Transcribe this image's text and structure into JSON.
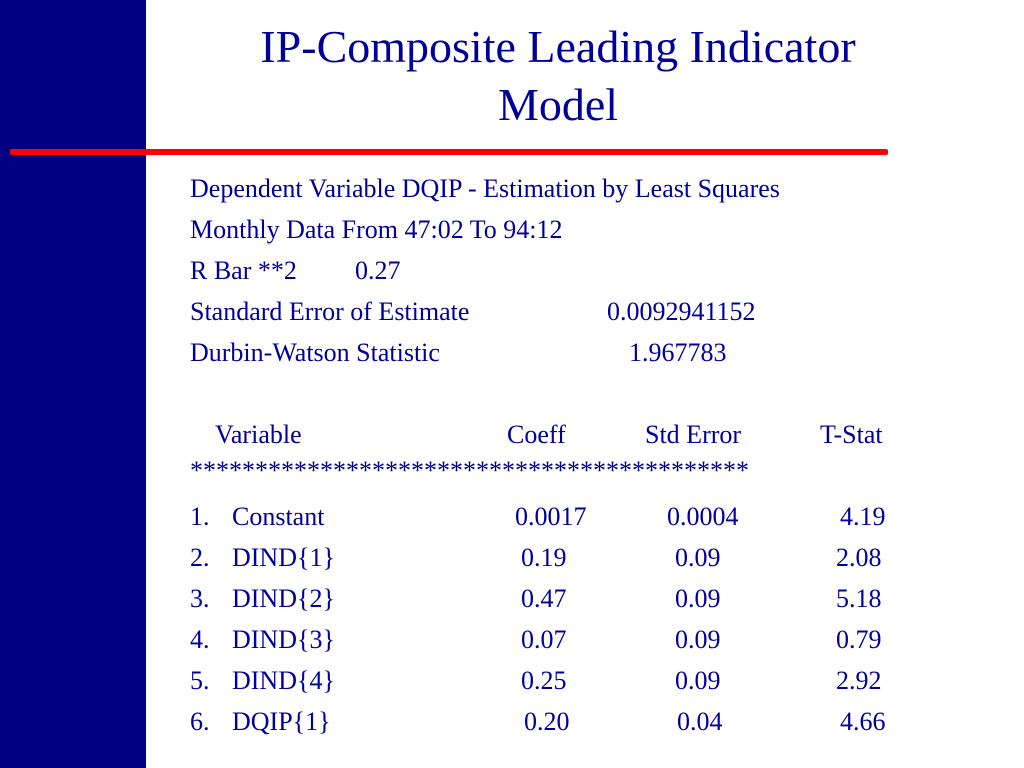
{
  "colors": {
    "left_bar": "#000080",
    "rule": "#ff0000",
    "text": "#000099",
    "background": "#ffffff"
  },
  "title": {
    "line1": "IP-Composite Leading Indicator",
    "line2": "Model"
  },
  "stats": {
    "dependent": "Dependent Variable DQIP - Estimation by Least Squares",
    "monthly": "Monthly Data From 47:02 To 94:12",
    "rbar_label": "R Bar **2",
    "rbar_value": "0.27",
    "se_label": "Standard Error of Estimate",
    "se_value": "0.0092941152",
    "dw_label": "Durbin-Watson Statistic",
    "dw_value": "1.967783"
  },
  "table": {
    "headers": {
      "variable": "Variable",
      "coeff": "Coeff",
      "std_error": "Std Error",
      "tstat": "T-Stat"
    },
    "separator": "*******************************************",
    "rows": [
      {
        "num": "1.",
        "name": "Constant",
        "coeff": "0.0017",
        "se": "0.0004",
        "t": "4.19"
      },
      {
        "num": "2.",
        "name": "DIND{1}",
        "coeff": "0.19",
        "se": "0.09",
        "t": "2.08"
      },
      {
        "num": "3.",
        "name": "DIND{2}",
        "coeff": "0.47",
        "se": "0.09",
        "t": "5.18"
      },
      {
        "num": "4.",
        "name": "DIND{3}",
        "coeff": "0.07",
        "se": "0.09",
        "t": "0.79"
      },
      {
        "num": "5.",
        "name": "DIND{4}",
        "coeff": "0.25",
        "se": "0.09",
        "t": "2.92"
      },
      {
        "num": "6.",
        "name": "DQIP{1}",
        "coeff": "0.20",
        "se": "0.04",
        "t": "4.66"
      }
    ]
  }
}
